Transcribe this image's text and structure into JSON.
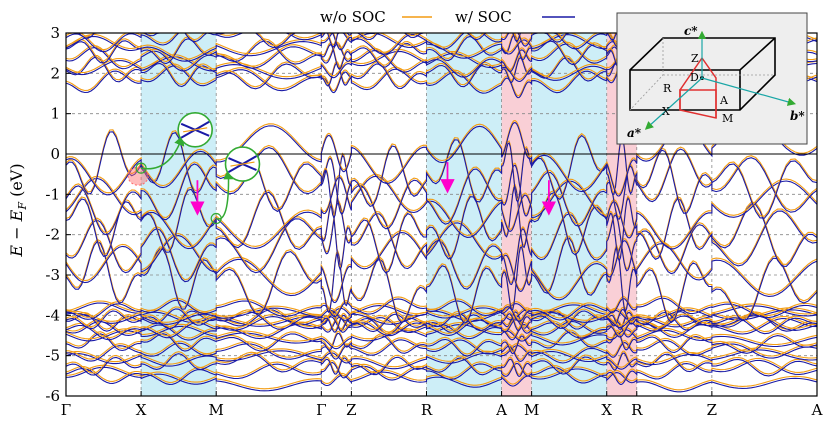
{
  "chart_data": {
    "type": "line",
    "title": "",
    "xlabel": "",
    "ylabel": "E − E_F (eV)",
    "ylabel_parts": {
      "main": "E",
      "minus": "−",
      "sub_base": "E",
      "sub": "F",
      "unit": "(eV)"
    },
    "ylim": [
      -6,
      3
    ],
    "yticks": [
      -6,
      -5,
      -4,
      -3,
      -2,
      -1,
      0,
      1,
      2,
      3
    ],
    "fermi_level": 0,
    "grid": "dashed",
    "legend_placement": "top-center",
    "kpath": [
      {
        "label": "Γ",
        "k": 0.0
      },
      {
        "label": "X",
        "k": 0.1
      },
      {
        "label": "M",
        "k": 0.2
      },
      {
        "label": "Γ",
        "k": 0.34
      },
      {
        "label": "Z",
        "k": 0.38
      },
      {
        "label": "R",
        "k": 0.48
      },
      {
        "label": "A",
        "k": 0.58
      },
      {
        "label": "M",
        "k": 0.62
      },
      {
        "label": "X",
        "k": 0.72
      },
      {
        "label": "R",
        "k": 0.76
      },
      {
        "label": "Z",
        "k": 0.86
      },
      {
        "label": "A",
        "k": 1.0
      }
    ],
    "shaded_regions": [
      {
        "from": 0.1,
        "to": 0.2,
        "color": "#cdeef7"
      },
      {
        "from": 0.48,
        "to": 0.58,
        "color": "#cdeef7"
      },
      {
        "from": 0.58,
        "to": 0.62,
        "color": "#f9cfd6"
      },
      {
        "from": 0.62,
        "to": 0.72,
        "color": "#cdeef7"
      },
      {
        "from": 0.72,
        "to": 0.76,
        "color": "#f9cfd6"
      }
    ],
    "series": [
      {
        "name": "w/o SOC",
        "color": "#f39c12"
      },
      {
        "name": "w/ SOC",
        "color": "#1a1aa6"
      }
    ],
    "annotations": {
      "arrows": [
        {
          "k": 0.175,
          "from": -0.65,
          "to": -1.35,
          "color": "#ff00cc"
        },
        {
          "k": 0.508,
          "from": -0.2,
          "to": -0.8,
          "color": "#ff00cc"
        },
        {
          "k": 0.643,
          "from": -0.65,
          "to": -1.35,
          "color": "#ff00cc"
        }
      ],
      "highlight": {
        "k": 0.096,
        "e": -0.55,
        "color": "#ff6b6b"
      },
      "zoom_circles": [
        {
          "k": 0.1,
          "e": -0.35,
          "zoom_k": 0.172,
          "zoom_e": 0.6
        },
        {
          "k": 0.2,
          "e": -1.6,
          "zoom_k": 0.235,
          "zoom_e": -0.25
        }
      ]
    },
    "inset": {
      "axes": [
        "c*",
        "b*",
        "a*"
      ],
      "points": [
        "Z",
        "D",
        "R",
        "A",
        "X",
        "M"
      ]
    },
    "bands_description": "approximate"
  },
  "colors": {
    "wo_soc": "#f39c12",
    "w_soc": "#1a1aa6",
    "cyan": "#cdeef7",
    "pink": "#f9cfd6",
    "grid": "#888888",
    "arrow": "#ff00cc",
    "zoom": "#33aa33"
  }
}
